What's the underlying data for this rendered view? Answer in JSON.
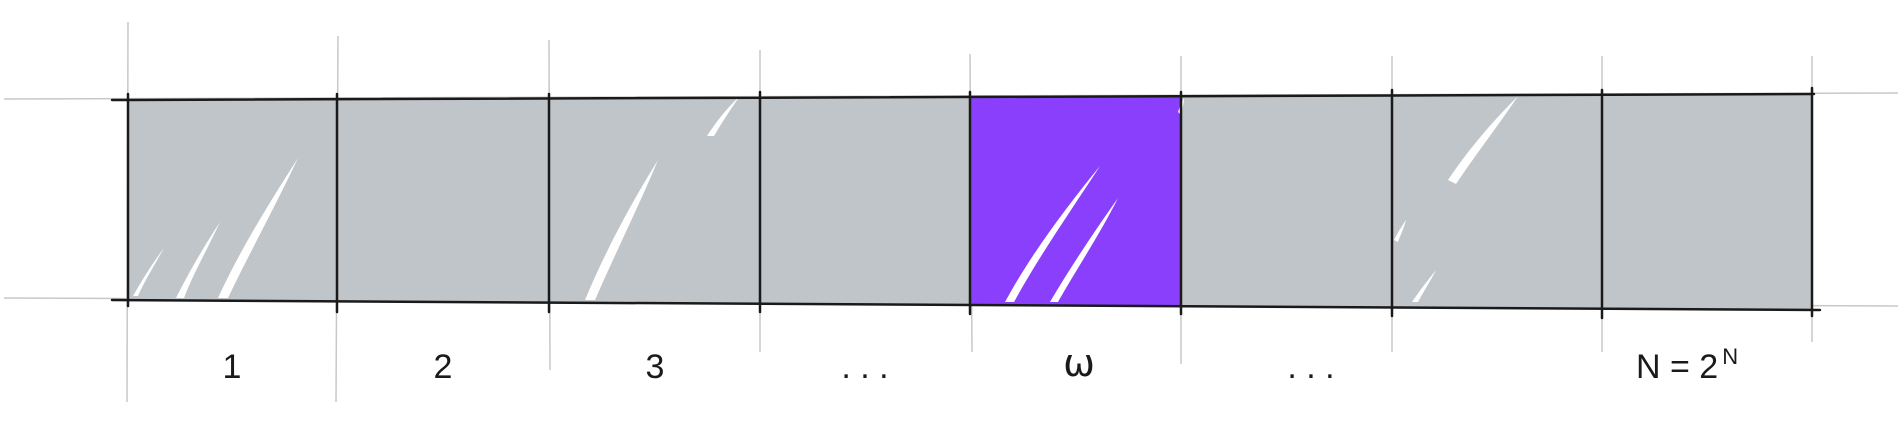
{
  "diagram": {
    "cells": [
      {
        "id": "cell-1",
        "label": "1",
        "highlighted": false
      },
      {
        "id": "cell-2",
        "label": "2",
        "highlighted": false
      },
      {
        "id": "cell-3",
        "label": "3",
        "highlighted": false
      },
      {
        "id": "cell-ellipsis-left",
        "label": ". . .",
        "highlighted": false
      },
      {
        "id": "cell-omega",
        "label": "ω",
        "highlighted": true
      },
      {
        "id": "cell-ellipsis-right",
        "label": ". . .",
        "highlighted": false
      },
      {
        "id": "cell-7",
        "label": "",
        "highlighted": false
      },
      {
        "id": "cell-last",
        "label": "N = 2",
        "label_superscript": "N",
        "highlighted": false
      }
    ],
    "colors": {
      "cell_fill": "#c0c5c9",
      "highlight_fill": "#8a3ffc",
      "line": "#1a1a1a",
      "guide_line": "#c8c8c8",
      "shine": "#ffffff"
    }
  }
}
